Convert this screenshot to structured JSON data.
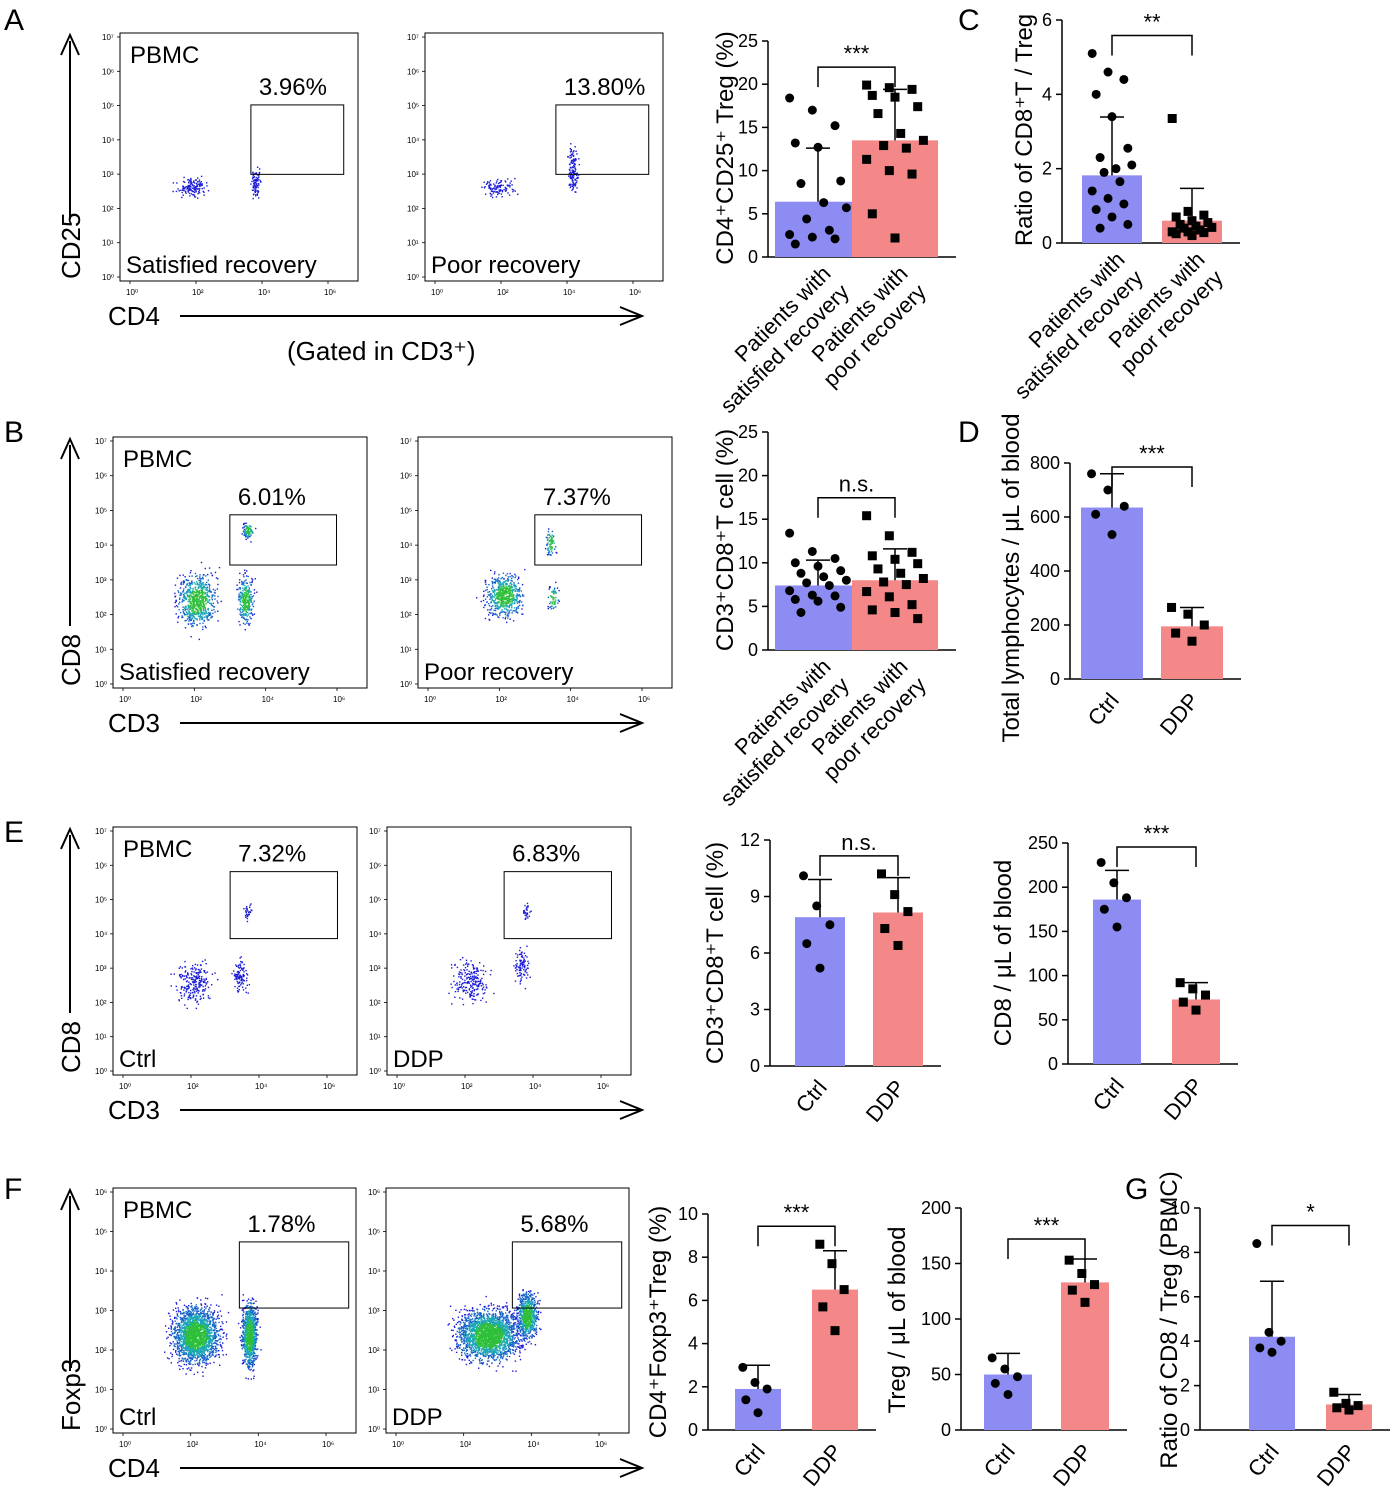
{
  "colors": {
    "ctrl": "#8c8cf2",
    "ddp": "#f48787",
    "dot": "#000000"
  },
  "panel_letters": [
    "A",
    "B",
    "C",
    "D",
    "E",
    "F",
    "G"
  ],
  "flow": [
    {
      "panel": "A",
      "letter": "A",
      "y_label": "CD25",
      "x_label": "CD4",
      "gating_note": "(Gated in CD3⁺)",
      "row_x": [
        120,
        425
      ],
      "row_y": [
        33,
        281
      ],
      "width": 238,
      "gate": [
        0.55,
        0.29,
        0.94,
        0.57
      ],
      "cluster": "cd25",
      "plots": [
        {
          "title": "PBMC",
          "corner": "Satisfied recovery",
          "gate_pct": "3.96%",
          "ctrl": true
        },
        {
          "title": "",
          "corner": "Poor recovery",
          "gate_pct": "13.80%",
          "ctrl": false
        }
      ]
    },
    {
      "panel": "B",
      "letter": "B",
      "y_label": "CD8",
      "x_label": "CD3",
      "gating_note": "",
      "row_x": [
        113,
        418
      ],
      "row_y": [
        437,
        688
      ],
      "width": 254,
      "gate": [
        0.46,
        0.31,
        0.88,
        0.51
      ],
      "cluster": "cd8",
      "plots": [
        {
          "title": "PBMC",
          "corner": "Satisfied recovery",
          "gate_pct": "6.01%",
          "ctrl": true
        },
        {
          "title": "",
          "corner": "Poor recovery",
          "gate_pct": "7.37%",
          "ctrl": false
        }
      ]
    },
    {
      "panel": "E",
      "letter": "E",
      "y_label": "CD8",
      "x_label": "CD3",
      "gating_note": "",
      "row_x": [
        113,
        387
      ],
      "row_y": [
        827,
        1075
      ],
      "width": 244,
      "gate": [
        0.48,
        0.18,
        0.92,
        0.45
      ],
      "cluster": "cd8e",
      "plots": [
        {
          "title": "PBMC",
          "corner": "Ctrl",
          "gate_pct": "7.32%",
          "ctrl": true
        },
        {
          "title": "",
          "corner": "DDP",
          "gate_pct": "6.83%",
          "ctrl": false
        }
      ]
    },
    {
      "panel": "F",
      "letter": "F",
      "y_label": "Foxp3",
      "x_label": "CD4",
      "gating_note": "",
      "row_x": [
        113,
        386
      ],
      "row_y": [
        1188,
        1433
      ],
      "width": 243,
      "gate": [
        0.52,
        0.22,
        0.97,
        0.49
      ],
      "cluster": "foxp3",
      "plots": [
        {
          "title": "PBMC",
          "corner": "Ctrl",
          "gate_pct": "1.78%",
          "ctrl": true
        },
        {
          "title": "",
          "corner": "DDP",
          "gate_pct": "5.68%",
          "ctrl": false
        }
      ]
    }
  ],
  "flow_ticks": {
    "x": [
      "10⁰",
      "10²",
      "10⁴",
      "10⁶"
    ],
    "y": [
      "10⁰",
      "10¹",
      "10²",
      "10³",
      "10⁴",
      "10⁵",
      "10⁶",
      "10⁷"
    ],
    "y_f": [
      "10⁰",
      "10¹",
      "10²",
      "10³",
      "10⁴",
      "10⁵",
      "10⁶"
    ]
  },
  "chart_data": [
    {
      "id": "A-bar",
      "type": "bar",
      "panel": "A",
      "ylabel": "CD4⁺CD25⁺ Treg (%)",
      "ylim": [
        0,
        25
      ],
      "yticks": [
        0,
        5,
        10,
        15,
        20,
        25
      ],
      "categories": [
        "Patients with satisfied recovery",
        "Patients with poor recovery"
      ],
      "values": [
        6.4,
        13.5
      ],
      "sd": [
        6.2,
        5.9
      ],
      "significance": "***",
      "points": [
        [
          18.4,
          17.0,
          15.2,
          13.2,
          12.7,
          8.8,
          8.5,
          6.3,
          5.7,
          4.4,
          3.1,
          2.6,
          2.3,
          2.1,
          1.5
        ],
        [
          19.9,
          19.6,
          19.4,
          18.7,
          18.5,
          17.4,
          16.6,
          14.3,
          13.5,
          12.9,
          12.6,
          11.3,
          10.0,
          9.6,
          5.0,
          2.2
        ]
      ]
    },
    {
      "id": "B-bar",
      "type": "bar",
      "panel": "B",
      "ylabel": "CD3⁺CD8⁺T cell (%)",
      "ylim": [
        0,
        25
      ],
      "yticks": [
        0,
        5,
        10,
        15,
        20,
        25
      ],
      "categories": [
        "Patients with satisfied recovery",
        "Patients with poor recovery"
      ],
      "values": [
        7.4,
        8.0
      ],
      "sd": [
        2.9,
        3.6
      ],
      "significance": "n.s.",
      "points": [
        [
          13.4,
          11.3,
          10.5,
          10.0,
          9.6,
          9.1,
          8.8,
          8.4,
          8.0,
          7.7,
          7.4,
          6.8,
          6.3,
          6.2,
          5.8,
          5.6,
          4.9,
          4.3
        ],
        [
          15.4,
          13.1,
          11.2,
          10.8,
          10.4,
          9.9,
          9.3,
          8.8,
          8.2,
          7.8,
          7.5,
          6.7,
          6.1,
          5.2,
          4.6,
          4.3,
          3.6
        ]
      ]
    },
    {
      "id": "C-bar",
      "type": "bar",
      "panel": "C",
      "ylabel": "Ratio of CD8⁺T / Treg",
      "ylim": [
        0,
        6
      ],
      "yticks": [
        0,
        2,
        4,
        6
      ],
      "categories": [
        "Patients with satisfied recovery",
        "Patients with poor recovery"
      ],
      "values": [
        1.82,
        0.6
      ],
      "sd": [
        1.57,
        0.87
      ],
      "significance": "**",
      "points": [
        [
          5.1,
          4.6,
          4.4,
          4.0,
          3.4,
          2.55,
          2.3,
          2.0,
          2.1,
          1.9,
          1.65,
          1.4,
          1.2,
          1.05,
          0.9,
          0.7,
          0.5,
          0.4
        ],
        [
          3.35,
          0.85,
          0.75,
          0.7,
          0.6,
          0.55,
          0.5,
          0.45,
          0.42,
          0.4,
          0.35,
          0.3,
          0.3,
          0.28,
          0.25,
          0.2
        ]
      ]
    },
    {
      "id": "D-bar",
      "type": "bar",
      "panel": "D",
      "ylabel": "Total lymphocytes / μL of blood",
      "ylim": [
        0,
        800
      ],
      "yticks": [
        0,
        200,
        400,
        600,
        800
      ],
      "categories": [
        "Ctrl",
        "DDP"
      ],
      "values": [
        635,
        195
      ],
      "sd": [
        125,
        70
      ],
      "significance": "***",
      "points": [
        [
          760,
          700,
          640,
          610,
          535
        ],
        [
          265,
          240,
          200,
          170,
          140
        ]
      ]
    },
    {
      "id": "E-bar1",
      "type": "bar",
      "panel": "E",
      "ylabel": "CD3⁺CD8⁺T cell (%)",
      "ylim": [
        0,
        12
      ],
      "yticks": [
        0,
        3,
        6,
        9,
        12
      ],
      "categories": [
        "Ctrl",
        "DDP"
      ],
      "values": [
        7.9,
        8.15
      ],
      "sd": [
        2.0,
        1.85
      ],
      "significance": "n.s.",
      "points": [
        [
          10.1,
          8.5,
          7.5,
          6.5,
          5.2
        ],
        [
          10.2,
          9.1,
          8.2,
          7.3,
          6.4
        ]
      ]
    },
    {
      "id": "E-bar2",
      "type": "bar",
      "panel": "E",
      "ylabel": "CD8 / μL of blood",
      "ylim": [
        0,
        250
      ],
      "yticks": [
        0,
        50,
        100,
        150,
        200,
        250
      ],
      "categories": [
        "Ctrl",
        "DDP"
      ],
      "values": [
        186,
        73
      ],
      "sd": [
        33,
        19
      ],
      "significance": "***",
      "points": [
        [
          228,
          205,
          188,
          175,
          155
        ],
        [
          92,
          85,
          78,
          70,
          61
        ]
      ]
    },
    {
      "id": "F-bar1",
      "type": "bar",
      "panel": "F",
      "ylabel": "CD4⁺Foxp3⁺Treg (%)",
      "ylim": [
        0,
        10
      ],
      "yticks": [
        0,
        2,
        4,
        6,
        8,
        10
      ],
      "categories": [
        "Ctrl",
        "DDP"
      ],
      "values": [
        1.9,
        6.5
      ],
      "sd": [
        1.1,
        1.8
      ],
      "significance": "***",
      "points": [
        [
          2.9,
          2.2,
          1.9,
          1.4,
          0.8
        ],
        [
          8.6,
          7.7,
          6.5,
          5.7,
          4.6
        ]
      ]
    },
    {
      "id": "F-bar2",
      "type": "bar",
      "panel": "F",
      "ylabel": "Treg / μL of blood",
      "ylim": [
        0,
        200
      ],
      "yticks": [
        0,
        50,
        100,
        150,
        200
      ],
      "categories": [
        "Ctrl",
        "DDP"
      ],
      "values": [
        50,
        133
      ],
      "sd": [
        19,
        21
      ],
      "significance": "***",
      "points": [
        [
          65,
          55,
          48,
          42,
          32
        ],
        [
          153,
          141,
          131,
          126,
          115
        ]
      ]
    },
    {
      "id": "G-bar",
      "type": "bar",
      "panel": "G",
      "ylabel": "Ratio of CD8 / Treg (PBMC)",
      "ylim": [
        0,
        10
      ],
      "yticks": [
        0,
        2,
        4,
        6,
        8,
        10
      ],
      "categories": [
        "Ctrl",
        "DDP"
      ],
      "values": [
        4.2,
        1.15
      ],
      "sd": [
        2.5,
        0.45
      ],
      "significance": "*",
      "points": [
        [
          8.4,
          4.4,
          4.0,
          3.7,
          3.5
        ],
        [
          1.7,
          1.2,
          1.1,
          1.0,
          0.9
        ]
      ]
    }
  ]
}
